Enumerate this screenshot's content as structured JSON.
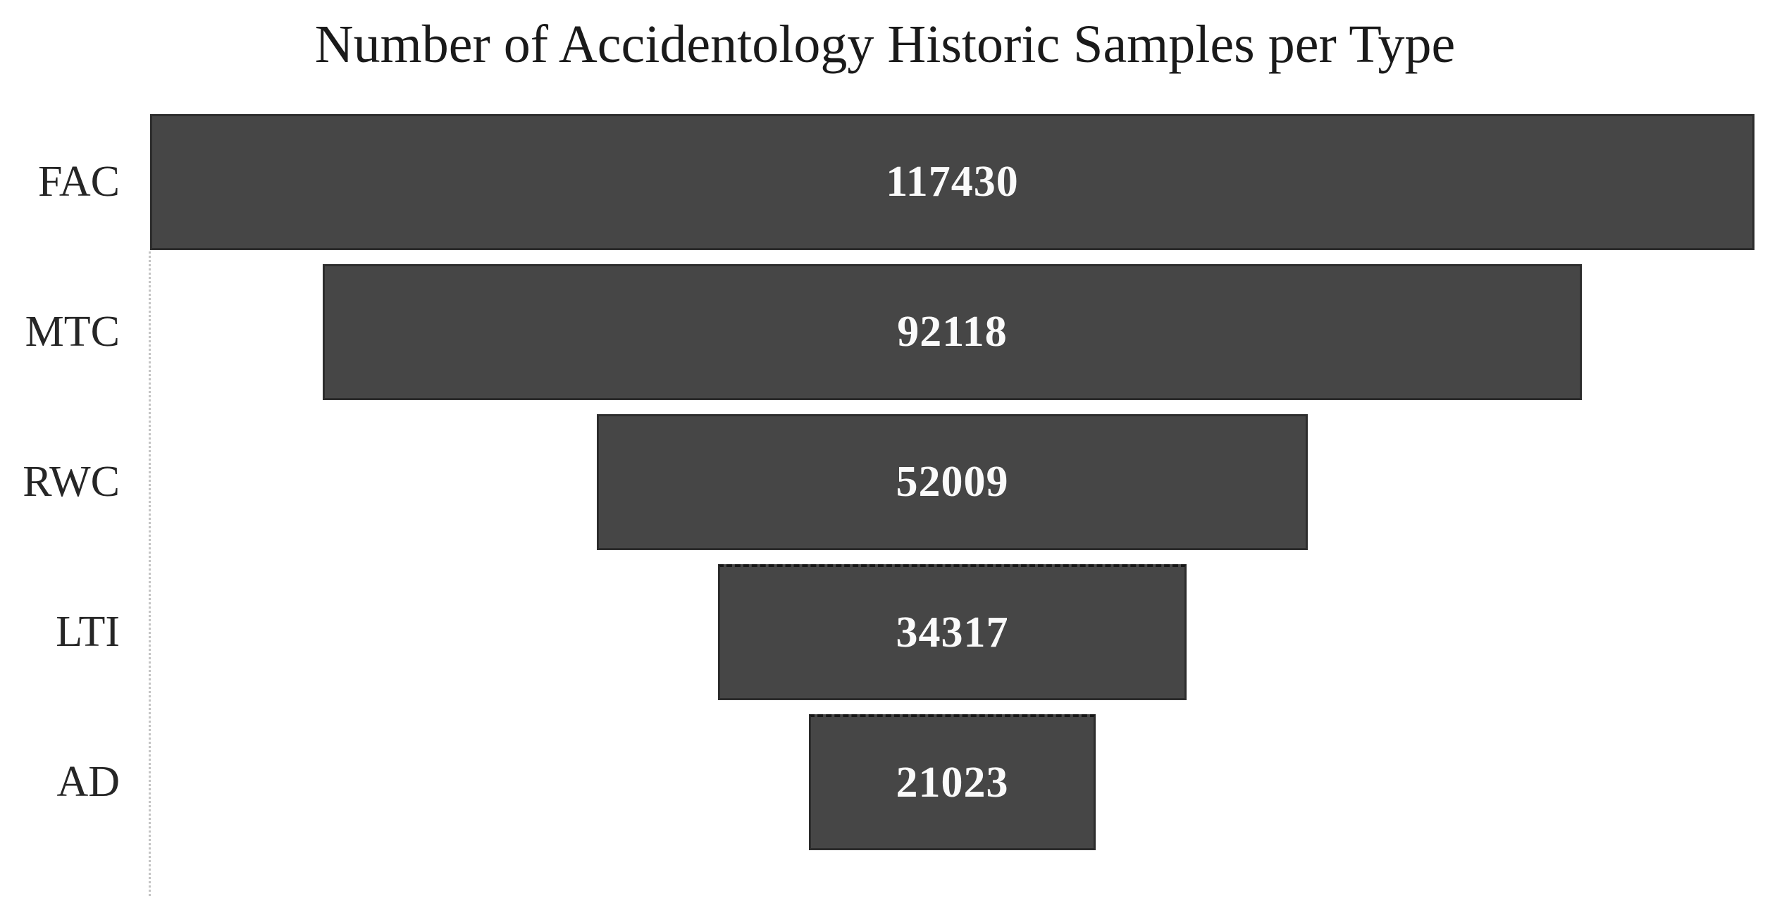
{
  "chart_data": {
    "type": "bar",
    "variant": "funnel-centered-horizontal",
    "title": "Number of Accidentology Historic Samples per Type",
    "categories": [
      "FAC",
      "MTC",
      "RWC",
      "LTI",
      "AD"
    ],
    "values": [
      117430,
      92118,
      52009,
      34317,
      21023
    ],
    "xlabel": "",
    "ylabel": "",
    "x_range": [
      0,
      117430
    ],
    "grid": false,
    "legend": "none",
    "axis_line_style": "dotted-left-vertical",
    "bars_alignment": "center",
    "colors": {
      "background": "#ffffff",
      "bar_fill": "#464646",
      "bar_border": "#2d2d2d",
      "value_label": "#fafafa",
      "category_label": "#262626",
      "title_text": "#1a1a1a",
      "axis_dotted_line": "#c4c4c4"
    }
  }
}
